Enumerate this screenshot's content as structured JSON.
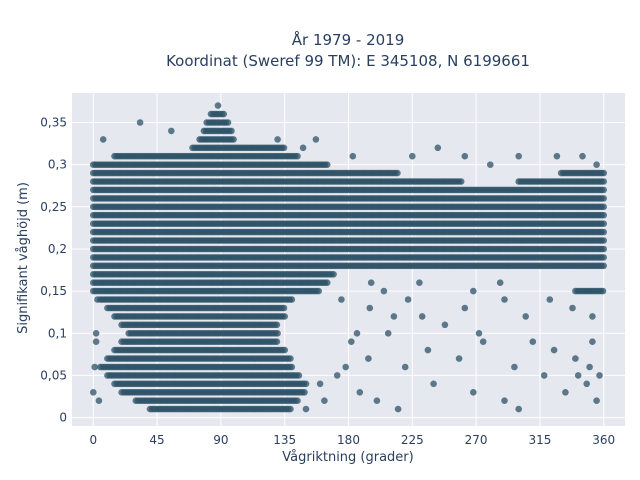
{
  "chart_data": {
    "type": "scatter",
    "title": "År 1979 - 2019",
    "subtitle": "Koordinat (Sweref 99 TM): E 345108, N 6199661",
    "xlabel": "Vågriktning (grader)",
    "ylabel": "Signifikant våghöjd (m)",
    "xlim": [
      -15,
      375
    ],
    "ylim": [
      -0.01,
      0.385
    ],
    "x_ticks": [
      {
        "value": 0,
        "label": "0"
      },
      {
        "value": 45,
        "label": "45"
      },
      {
        "value": 90,
        "label": "90"
      },
      {
        "value": 135,
        "label": "135"
      },
      {
        "value": 180,
        "label": "180"
      },
      {
        "value": 225,
        "label": "225"
      },
      {
        "value": 270,
        "label": "270"
      },
      {
        "value": 315,
        "label": "315"
      },
      {
        "value": 360,
        "label": "360"
      }
    ],
    "y_ticks": [
      {
        "value": 0,
        "label": "0"
      },
      {
        "value": 0.05,
        "label": "0,05"
      },
      {
        "value": 0.1,
        "label": "0,1"
      },
      {
        "value": 0.15,
        "label": "0,15"
      },
      {
        "value": 0.2,
        "label": "0,2"
      },
      {
        "value": 0.25,
        "label": "0,25"
      },
      {
        "value": 0.3,
        "label": "0,3"
      },
      {
        "value": 0.35,
        "label": "0,35"
      }
    ],
    "grid": true,
    "background": "#e5e8ef",
    "marker_color": "#2e5267",
    "marker_opacity": 0.75,
    "series": [
      {
        "dense_rows": [
          {
            "y": 0.01,
            "ranges": [
              [
                40,
                140
              ]
            ]
          },
          {
            "y": 0.02,
            "ranges": [
              [
                30,
                145
              ]
            ]
          },
          {
            "y": 0.03,
            "ranges": [
              [
                20,
                150
              ]
            ]
          },
          {
            "y": 0.04,
            "ranges": [
              [
                15,
                150
              ]
            ]
          },
          {
            "y": 0.05,
            "ranges": [
              [
                10,
                145
              ]
            ]
          },
          {
            "y": 0.06,
            "ranges": [
              [
                5,
                140
              ]
            ]
          },
          {
            "y": 0.07,
            "ranges": [
              [
                10,
                140
              ]
            ]
          },
          {
            "y": 0.08,
            "ranges": [
              [
                15,
                135
              ]
            ]
          },
          {
            "y": 0.09,
            "ranges": [
              [
                20,
                130
              ]
            ]
          },
          {
            "y": 0.1,
            "ranges": [
              [
                25,
                130
              ]
            ]
          },
          {
            "y": 0.11,
            "ranges": [
              [
                20,
                130
              ]
            ]
          },
          {
            "y": 0.12,
            "ranges": [
              [
                15,
                135
              ]
            ]
          },
          {
            "y": 0.13,
            "ranges": [
              [
                10,
                135
              ]
            ]
          },
          {
            "y": 0.14,
            "ranges": [
              [
                5,
                140
              ]
            ]
          },
          {
            "y": 0.15,
            "ranges": [
              [
                0,
                160
              ],
              [
                340,
                360
              ]
            ]
          },
          {
            "y": 0.16,
            "ranges": [
              [
                0,
                165
              ]
            ]
          },
          {
            "y": 0.17,
            "ranges": [
              [
                0,
                170
              ]
            ]
          },
          {
            "y": 0.18,
            "ranges": [
              [
                0,
                360
              ]
            ]
          },
          {
            "y": 0.19,
            "ranges": [
              [
                0,
                360
              ]
            ]
          },
          {
            "y": 0.2,
            "ranges": [
              [
                0,
                360
              ]
            ]
          },
          {
            "y": 0.21,
            "ranges": [
              [
                0,
                360
              ]
            ]
          },
          {
            "y": 0.22,
            "ranges": [
              [
                0,
                360
              ]
            ]
          },
          {
            "y": 0.23,
            "ranges": [
              [
                0,
                360
              ]
            ]
          },
          {
            "y": 0.24,
            "ranges": [
              [
                0,
                360
              ]
            ]
          },
          {
            "y": 0.25,
            "ranges": [
              [
                0,
                360
              ]
            ]
          },
          {
            "y": 0.26,
            "ranges": [
              [
                0,
                360
              ]
            ]
          },
          {
            "y": 0.27,
            "ranges": [
              [
                0,
                360
              ]
            ]
          },
          {
            "y": 0.28,
            "ranges": [
              [
                0,
                260
              ],
              [
                300,
                360
              ]
            ]
          },
          {
            "y": 0.29,
            "ranges": [
              [
                0,
                215
              ],
              [
                330,
                360
              ]
            ]
          },
          {
            "y": 0.3,
            "ranges": [
              [
                0,
                165
              ]
            ]
          },
          {
            "y": 0.31,
            "ranges": [
              [
                15,
                145
              ]
            ]
          },
          {
            "y": 0.32,
            "ranges": [
              [
                70,
                135
              ]
            ]
          },
          {
            "y": 0.33,
            "ranges": [
              [
                75,
                100
              ]
            ]
          },
          {
            "y": 0.34,
            "ranges": [
              [
                78,
                98
              ]
            ]
          },
          {
            "y": 0.35,
            "ranges": [
              [
                80,
                95
              ]
            ]
          },
          {
            "y": 0.36,
            "ranges": [
              [
                83,
                92
              ]
            ]
          }
        ],
        "scattered_points": [
          [
            7,
            0.33
          ],
          [
            33,
            0.35
          ],
          [
            55,
            0.34
          ],
          [
            88,
            0.37
          ],
          [
            130,
            0.33
          ],
          [
            157,
            0.33
          ],
          [
            148,
            0.32
          ],
          [
            183,
            0.31
          ],
          [
            225,
            0.31
          ],
          [
            243,
            0.32
          ],
          [
            262,
            0.31
          ],
          [
            280,
            0.3
          ],
          [
            300,
            0.31
          ],
          [
            327,
            0.31
          ],
          [
            345,
            0.31
          ],
          [
            355,
            0.3
          ],
          [
            175,
            0.14
          ],
          [
            195,
            0.13
          ],
          [
            205,
            0.15
          ],
          [
            212,
            0.12
          ],
          [
            222,
            0.14
          ],
          [
            232,
            0.12
          ],
          [
            248,
            0.11
          ],
          [
            262,
            0.13
          ],
          [
            272,
            0.1
          ],
          [
            290,
            0.14
          ],
          [
            305,
            0.12
          ],
          [
            322,
            0.14
          ],
          [
            338,
            0.13
          ],
          [
            352,
            0.12
          ],
          [
            182,
            0.09
          ],
          [
            194,
            0.07
          ],
          [
            208,
            0.1
          ],
          [
            220,
            0.06
          ],
          [
            236,
            0.08
          ],
          [
            258,
            0.07
          ],
          [
            275,
            0.09
          ],
          [
            297,
            0.06
          ],
          [
            310,
            0.09
          ],
          [
            325,
            0.08
          ],
          [
            340,
            0.07
          ],
          [
            350,
            0.06
          ],
          [
            357,
            0.05
          ],
          [
            160,
            0.04
          ],
          [
            172,
            0.05
          ],
          [
            188,
            0.03
          ],
          [
            200,
            0.02
          ],
          [
            215,
            0.01
          ],
          [
            240,
            0.04
          ],
          [
            268,
            0.03
          ],
          [
            290,
            0.02
          ],
          [
            300,
            0.01
          ],
          [
            318,
            0.05
          ],
          [
            333,
            0.03
          ],
          [
            348,
            0.04
          ],
          [
            4,
            0.02
          ],
          [
            2,
            0.1
          ],
          [
            1,
            0.06
          ],
          [
            3,
            0.14
          ],
          [
            0,
            0.03
          ],
          [
            2,
            0.09
          ],
          [
            150,
            0.01
          ],
          [
            163,
            0.02
          ],
          [
            178,
            0.06
          ],
          [
            186,
            0.1
          ],
          [
            196,
            0.16
          ],
          [
            230,
            0.16
          ],
          [
            268,
            0.15
          ],
          [
            287,
            0.16
          ],
          [
            342,
            0.05
          ],
          [
            355,
            0.02
          ],
          [
            352,
            0.09
          ]
        ]
      }
    ]
  }
}
